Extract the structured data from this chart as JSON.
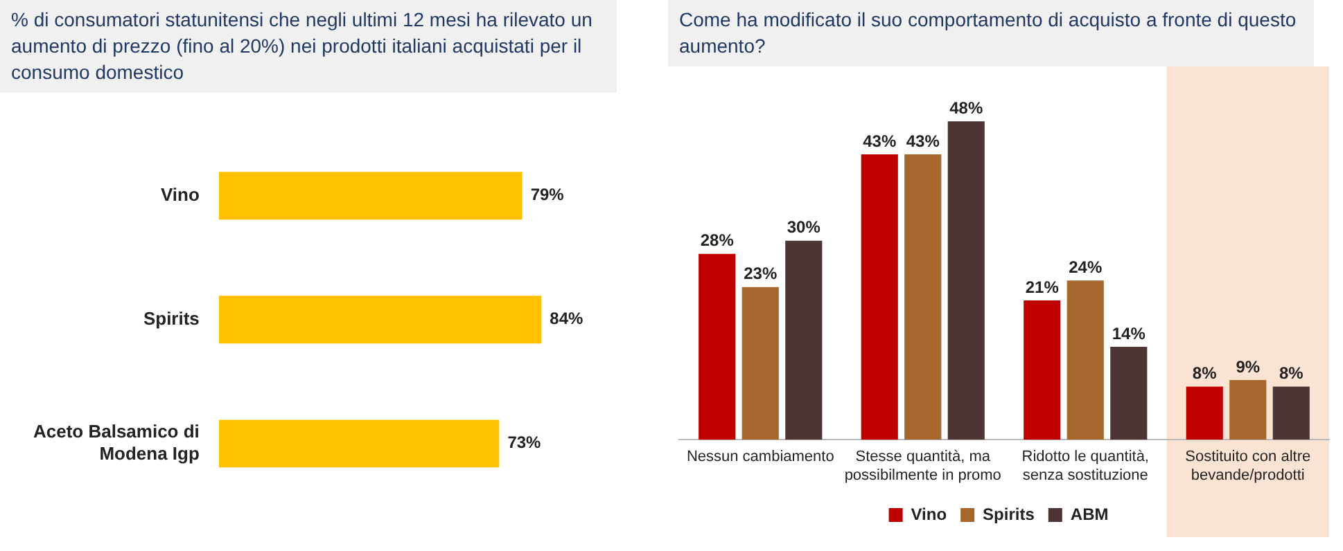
{
  "chart_data": [
    {
      "type": "bar",
      "orientation": "horizontal",
      "title": "% di consumatori statunitensi che negli ultimi 12 mesi ha rilevato un aumento di prezzo (fino al 20%) nei prodotti italiani acquistati per il consumo domestico",
      "categories": [
        "Vino",
        "Spirits",
        "Aceto Balsamico di Modena Igp"
      ],
      "values": [
        79,
        84,
        73
      ],
      "value_labels": [
        "79%",
        "84%",
        "73%"
      ],
      "color": "#ffc000",
      "grid": false,
      "legend": false
    },
    {
      "type": "bar",
      "title": "Come ha modificato il suo comportamento di acquisto a fronte di questo aumento?",
      "categories": [
        "Nessun cambiamento",
        "Stesse quantità, ma possibilmente in promo",
        "Ridotto le quantità, senza sostituzione",
        "Sostituito con altre bevande/prodotti"
      ],
      "series": [
        {
          "name": "Vino",
          "color": "#c00000",
          "values": [
            28,
            43,
            21,
            8
          ],
          "value_labels": [
            "28%",
            "43%",
            "21%",
            "8%"
          ]
        },
        {
          "name": "Spirits",
          "color": "#a5672b",
          "values": [
            23,
            43,
            24,
            9
          ],
          "value_labels": [
            "23%",
            "43%",
            "24%",
            "9%"
          ]
        },
        {
          "name": "ABM",
          "color": "#4e3535",
          "values": [
            30,
            48,
            14,
            8
          ],
          "value_labels": [
            "30%",
            "48%",
            "14%",
            "8%"
          ]
        }
      ],
      "bands": [
        {
          "axis": "x",
          "from": "Sostituito con altre bevande/prodotti",
          "to": "Sostituito con altre bevande/prodotti",
          "color": "#fbe3d3"
        }
      ],
      "grid": false,
      "legend": "bottom"
    }
  ]
}
